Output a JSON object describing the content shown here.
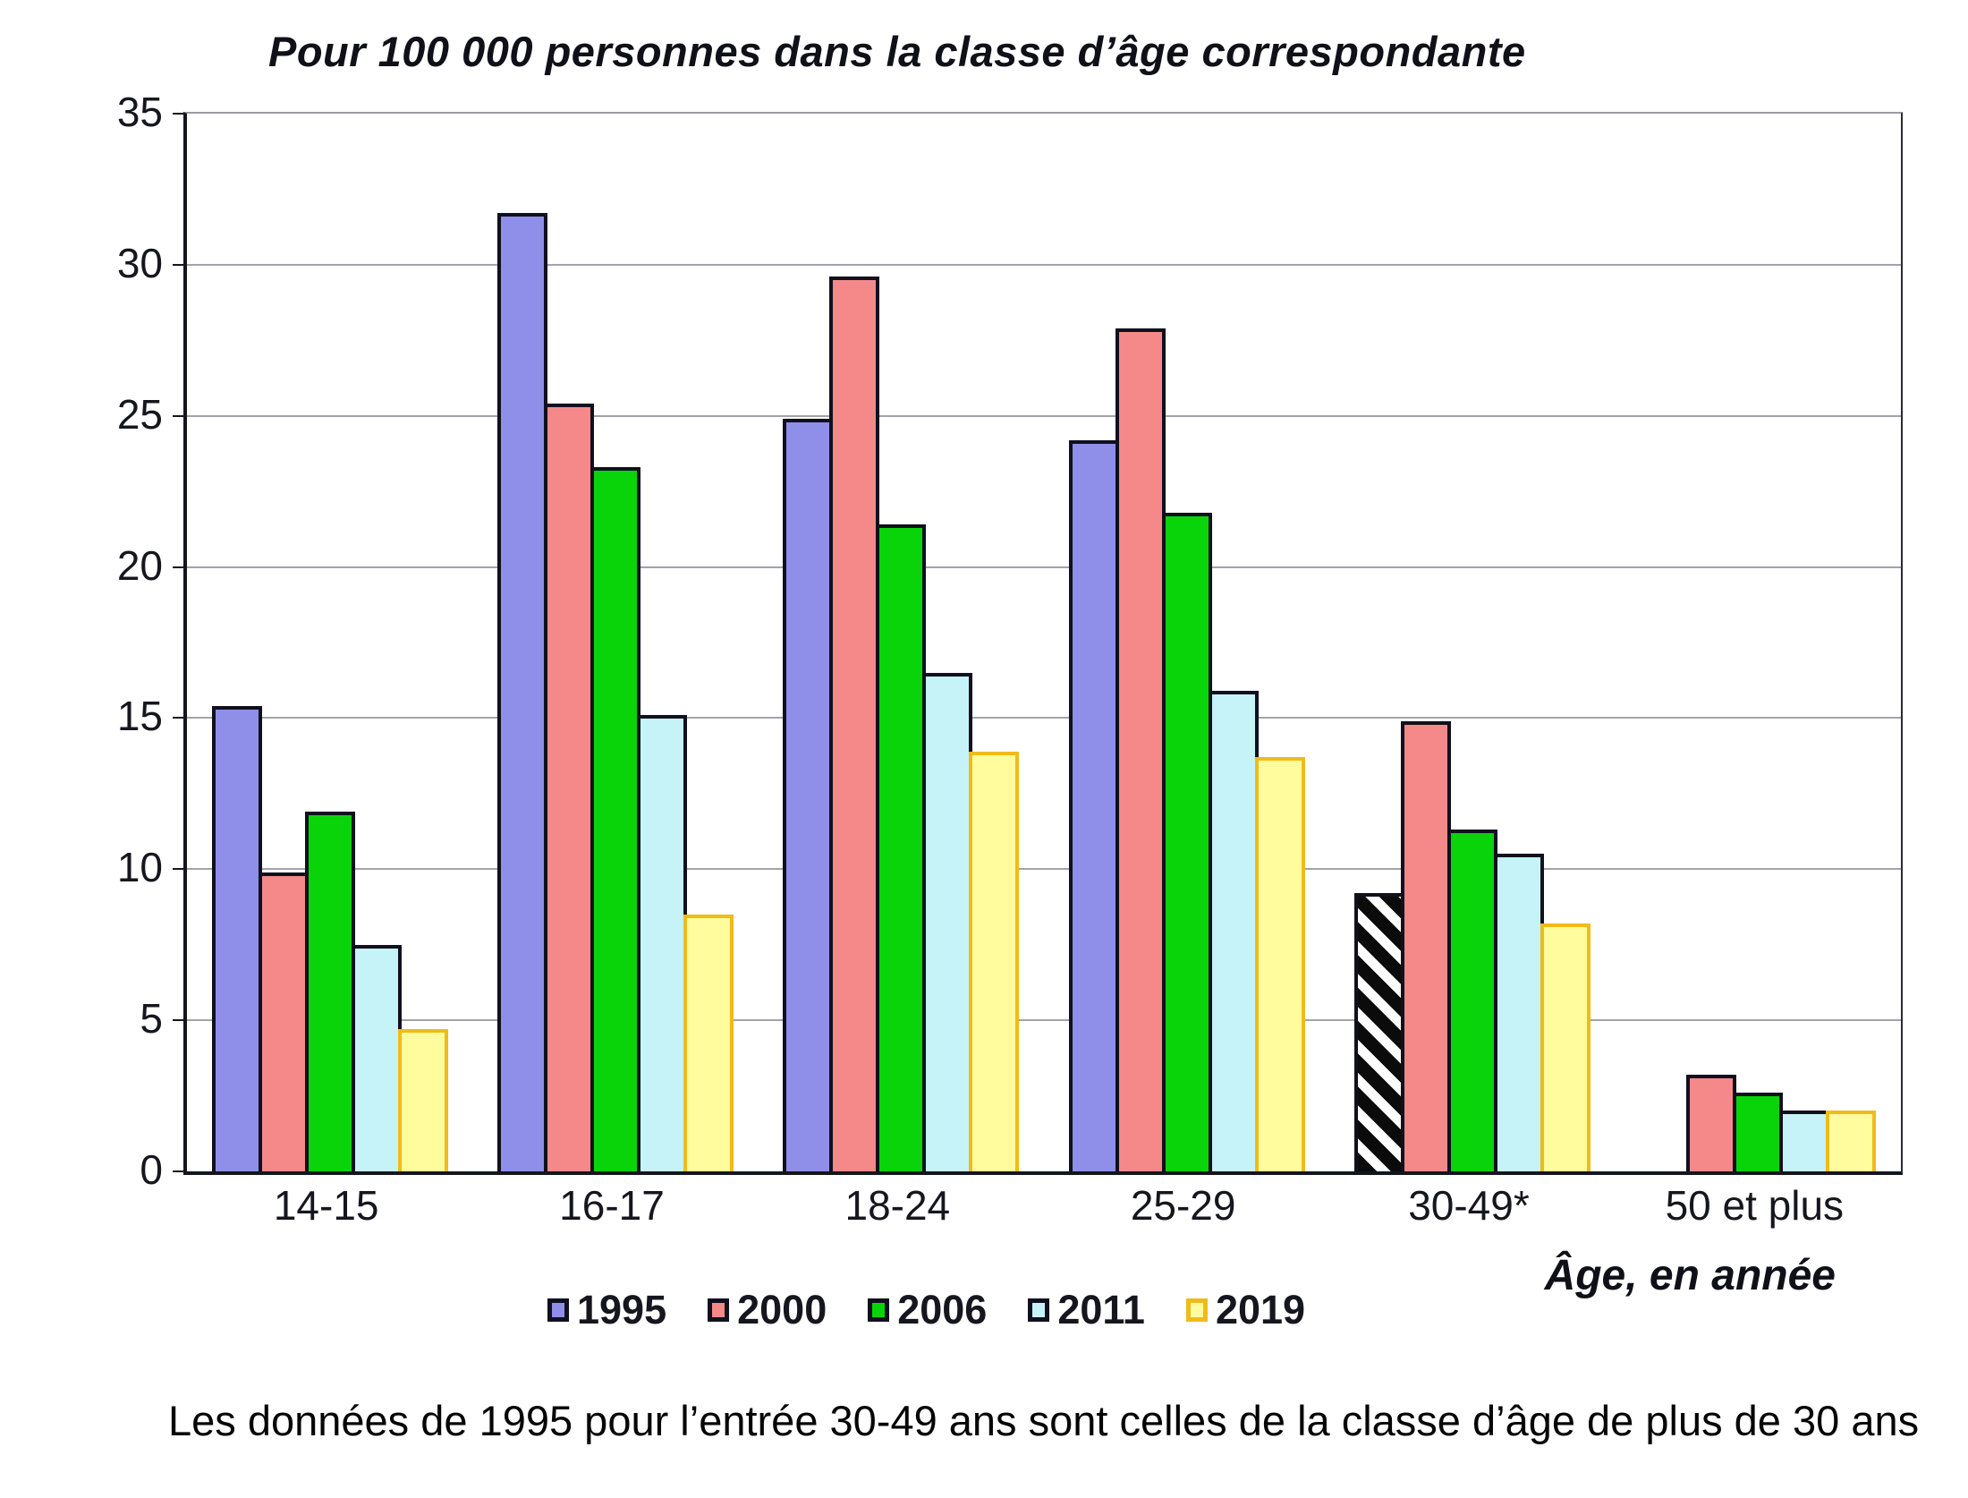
{
  "title": "Pour 100 000 personnes dans la classe d’âge correspondante",
  "footnote": "Les données de 1995 pour l’entrée 30-49 ans sont celles de la classe d’âge de plus de 30 ans",
  "xaxis_title": "Âge, en année",
  "colors": {
    "gridline": "#a2a2aa",
    "axis": "#15151d",
    "bar_border_dark": "#10101e",
    "bar_border_gold": "#f1ba1b",
    "hatch_black": "#0b0b0b",
    "hatch_white": "#ffffff"
  },
  "chart_data": {
    "type": "bar",
    "title": "Pour 100 000 personnes dans la classe d’âge correspondante",
    "xlabel": "Âge, en année",
    "ylabel": "",
    "ylim": [
      0,
      35
    ],
    "yticks": [
      0,
      5,
      10,
      15,
      20,
      25,
      30,
      35
    ],
    "grid": "horizontal",
    "legend_position": "bottom",
    "categories": [
      "14-15",
      "16-17",
      "18-24",
      "25-29",
      "30-49*",
      "50 et plus"
    ],
    "series": [
      {
        "name": "1995",
        "color": "#8f8fea",
        "border": "#10101e",
        "values": [
          15.4,
          31.7,
          24.9,
          24.2,
          9.2,
          null
        ]
      },
      {
        "name": "2000",
        "color": "#f58989",
        "border": "#10101e",
        "values": [
          9.9,
          25.4,
          29.6,
          27.9,
          14.9,
          3.2
        ]
      },
      {
        "name": "2006",
        "color": "#09d409",
        "border": "#10101e",
        "values": [
          11.9,
          23.3,
          21.4,
          21.8,
          11.3,
          2.6
        ]
      },
      {
        "name": "2011",
        "color": "#c6f3f8",
        "border": "#10101e",
        "values": [
          7.5,
          15.1,
          16.5,
          15.9,
          10.5,
          2.0
        ]
      },
      {
        "name": "2019",
        "color": "#fffc9d",
        "border": "#f1ba1b",
        "values": [
          4.7,
          8.5,
          13.9,
          13.7,
          8.2,
          2.0
        ]
      }
    ],
    "special_bars": [
      {
        "series": "1995",
        "category": "30-49*",
        "style": "black with white diagonal hatching",
        "meaning": "1995 value covers ages 30 and over (see footnote)"
      }
    ]
  }
}
